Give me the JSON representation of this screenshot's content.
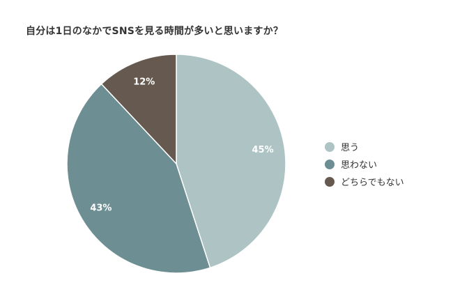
{
  "chart_data": {
    "type": "pie",
    "title": "自分は1日のなかでSNSを見る時間が多いと思いますか？",
    "categories": [
      "思う",
      "思わない",
      "どちらでもない"
    ],
    "values": [
      45,
      43,
      12
    ],
    "value_labels": [
      "45%",
      "43%",
      "12%"
    ],
    "colors": [
      "#aec4c4",
      "#6d8f94",
      "#665a50"
    ],
    "legend_position": "right"
  }
}
